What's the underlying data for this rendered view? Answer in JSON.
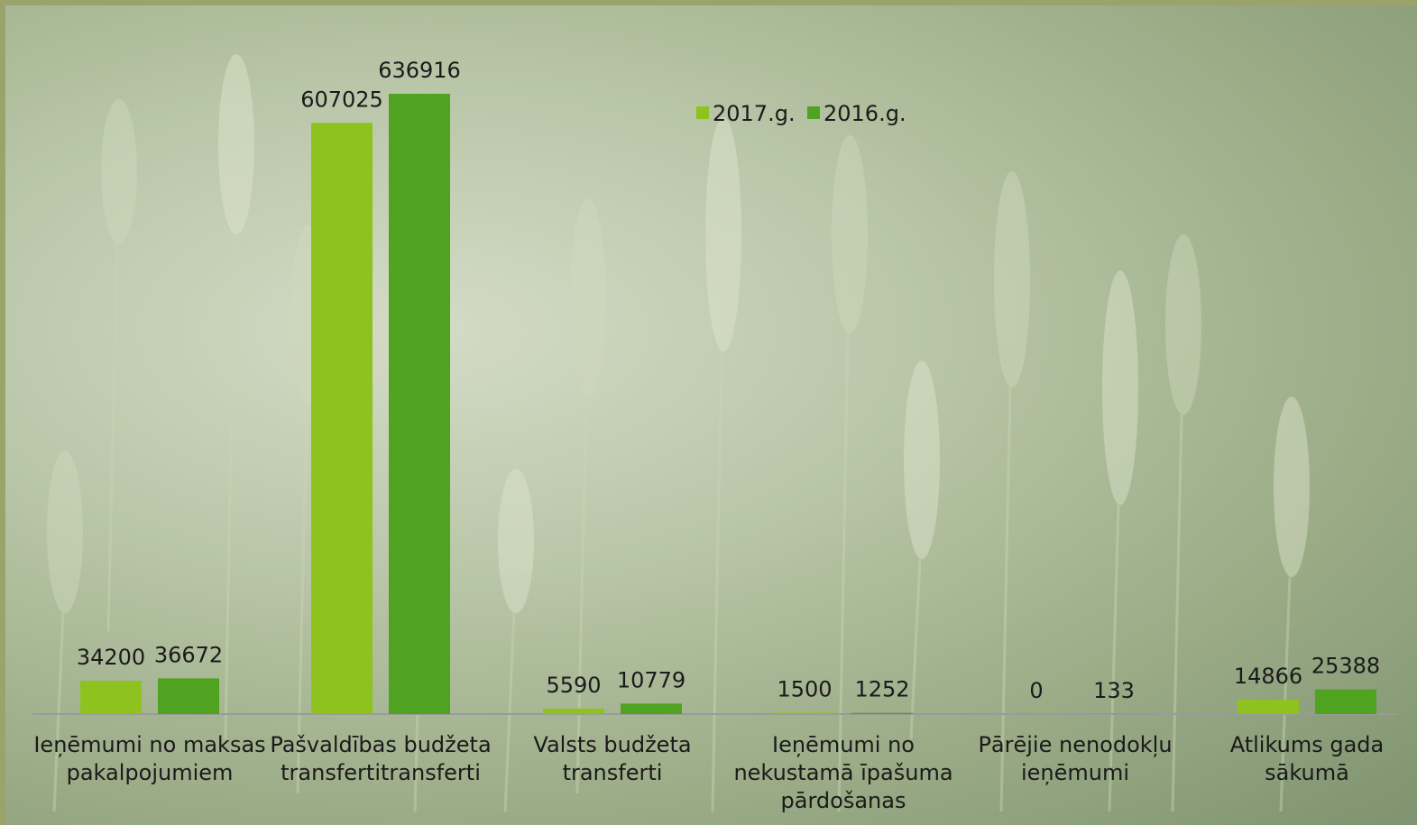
{
  "chart_data": {
    "type": "bar",
    "categories": [
      [
        "Ieņēmumi no maksas",
        "pakalpojumiem"
      ],
      [
        "Pašvaldības budžeta",
        "transfertitransferti"
      ],
      [
        "Valsts budžeta",
        "transferti"
      ],
      [
        "Ieņēmumi no",
        "nekustamā īpašuma",
        "pārdošanas"
      ],
      [
        "Pārējie nenodokļu",
        "ieņēmumi"
      ],
      [
        "Atlikums gada",
        "sākumā"
      ]
    ],
    "series": [
      {
        "name": "2017.g.",
        "color": "#8ec21f",
        "values": [
          34200,
          607025,
          5590,
          1500,
          0,
          14866
        ]
      },
      {
        "name": "2016.g.",
        "color": "#4fa321",
        "values": [
          36672,
          636916,
          10779,
          1252,
          133,
          25388
        ]
      }
    ],
    "ylim": [
      0,
      636916
    ],
    "legend_position": "top-center",
    "grid": false
  }
}
